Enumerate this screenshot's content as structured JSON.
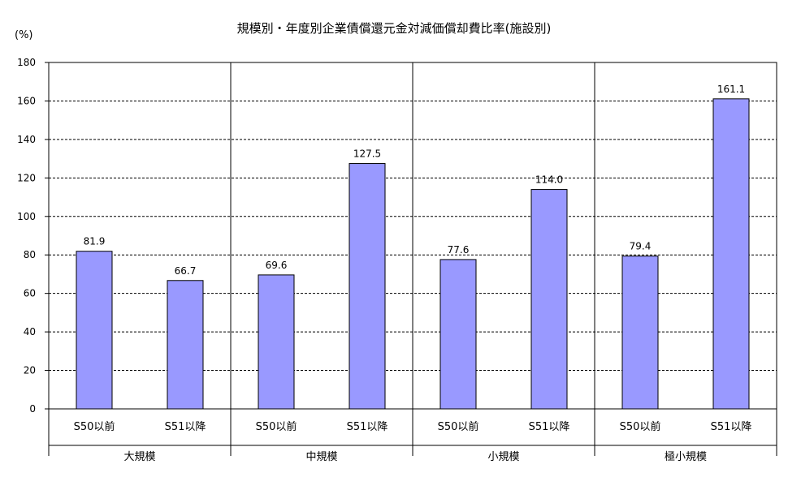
{
  "chart_data": {
    "type": "bar",
    "title": "規模別・年度別企業債償還元金対減価償却費比率(施設別)",
    "ylabel": "(%)",
    "xlabel": "",
    "ylim": [
      0,
      180
    ],
    "yticks": [
      0,
      20,
      40,
      60,
      80,
      100,
      120,
      140,
      160,
      180
    ],
    "grid": true,
    "legend": "none",
    "bar_color": "#9999ff",
    "groups": [
      {
        "name": "大規模",
        "categories": [
          "S50以前",
          "S51以降"
        ],
        "values": [
          81.9,
          66.7
        ],
        "labels": [
          "81.9",
          "66.7"
        ]
      },
      {
        "name": "中規模",
        "categories": [
          "S50以前",
          "S51以降"
        ],
        "values": [
          69.6,
          127.5
        ],
        "labels": [
          "69.6",
          "127.5"
        ]
      },
      {
        "name": "小規模",
        "categories": [
          "S50以前",
          "S51以降"
        ],
        "values": [
          77.6,
          114.0
        ],
        "labels": [
          "77.6",
          "114.0"
        ]
      },
      {
        "name": "極小規模",
        "categories": [
          "S50以前",
          "S51以降"
        ],
        "values": [
          79.4,
          161.1
        ],
        "labels": [
          "79.4",
          "161.1"
        ]
      }
    ]
  }
}
